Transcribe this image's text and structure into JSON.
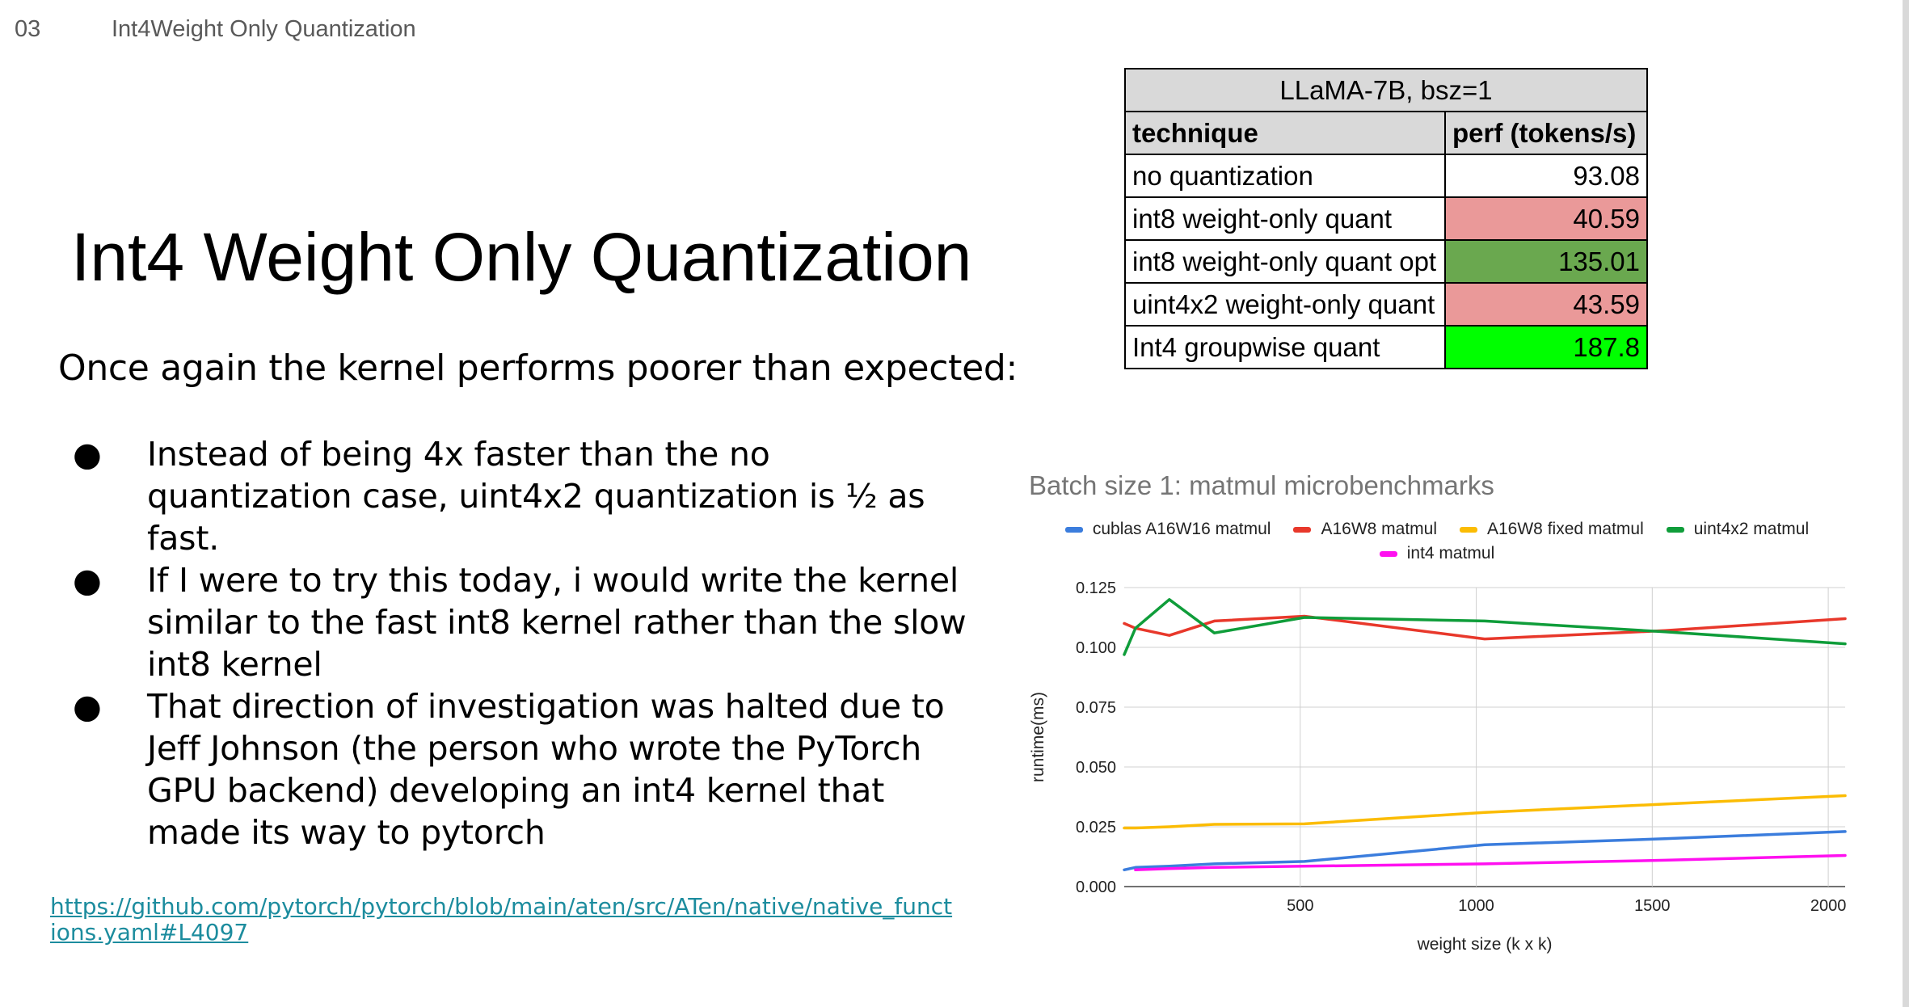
{
  "header": {
    "slide_number": "03",
    "section": "Int4Weight Only Quantization"
  },
  "title": "Int4 Weight Only Quantization",
  "intro": "Once again the kernel performs poorer than expected:",
  "bullets": [
    "Instead of being 4x faster than the no quantization case, uint4x2 quantization is ½ as fast.",
    "If I were to try this today, i would write the kernel similar to the fast int8 kernel rather than the slow int8 kernel",
    "That direction of investigation was halted due to Jeff Johnson (the person who wrote the PyTorch GPU backend) developing an int4 kernel that made its way to pytorch"
  ],
  "bullet_glyph": "●",
  "link": "https://github.com/pytorch/pytorch/blob/main/aten/src/ATen/native/native_functions.yaml#L4097",
  "table": {
    "caption": "LLaMA-7B, bsz=1",
    "headers": [
      "technique",
      "perf (tokens/s)"
    ],
    "rows": [
      {
        "technique": "no quantization",
        "perf": "93.08",
        "color": "#ffffff"
      },
      {
        "technique": "int8 weight-only quant",
        "perf": "40.59",
        "color": "#ea9999"
      },
      {
        "technique": "int8 weight-only quant opt",
        "perf": "135.01",
        "color": "#6aa84f"
      },
      {
        "technique": "uint4x2 weight-only quant",
        "perf": "43.59",
        "color": "#ea9999"
      },
      {
        "technique": "Int4 groupwise quant",
        "perf": "187.8",
        "color": "#00ff00"
      }
    ]
  },
  "chart_data": {
    "type": "line",
    "title": "Batch size 1: matmul microbenchmarks",
    "xlabel": "weight size (k x k)",
    "ylabel": "runtime(ms)",
    "xlim": [
      0,
      2048
    ],
    "ylim": [
      0,
      0.125
    ],
    "xticks": [
      500,
      1000,
      1500,
      2000
    ],
    "yticks": [
      0,
      0.025,
      0.05,
      0.075,
      0.1,
      0.125
    ],
    "ytick_labels": [
      "0.000",
      "0.025",
      "0.050",
      "0.075",
      "0.100",
      "0.125"
    ],
    "grid": true,
    "legend_position": "top",
    "series": [
      {
        "name": "cublas A16W16 matmul",
        "color": "#3b7ddd",
        "x": [
          0,
          32,
          128,
          256,
          512,
          1024,
          1536,
          2048
        ],
        "y": [
          0.007,
          0.008,
          0.0085,
          0.0095,
          0.0105,
          0.0175,
          0.02,
          0.023
        ]
      },
      {
        "name": "A16W8 matmul",
        "color": "#e8382b",
        "x": [
          0,
          32,
          128,
          256,
          512,
          1024,
          1536,
          2048
        ],
        "y": [
          0.11,
          0.108,
          0.105,
          0.111,
          0.113,
          0.1035,
          0.107,
          0.112
        ]
      },
      {
        "name": "A16W8 fixed matmul",
        "color": "#fbbc04",
        "x": [
          0,
          32,
          128,
          256,
          512,
          1024,
          1536,
          2048
        ],
        "y": [
          0.0245,
          0.0245,
          0.025,
          0.026,
          0.0262,
          0.031,
          0.0345,
          0.038
        ]
      },
      {
        "name": "uint4x2 matmul",
        "color": "#0f9d3a",
        "x": [
          0,
          32,
          128,
          256,
          512,
          1024,
          1536,
          2048
        ],
        "y": [
          0.097,
          0.108,
          0.12,
          0.106,
          0.1125,
          0.111,
          0.1065,
          0.1015
        ]
      },
      {
        "name": "int4 matmul",
        "color": "#ff10f0",
        "x": [
          32,
          128,
          256,
          512,
          1024,
          1536,
          2048
        ],
        "y": [
          0.007,
          0.0075,
          0.008,
          0.0085,
          0.0095,
          0.011,
          0.013
        ]
      }
    ]
  }
}
